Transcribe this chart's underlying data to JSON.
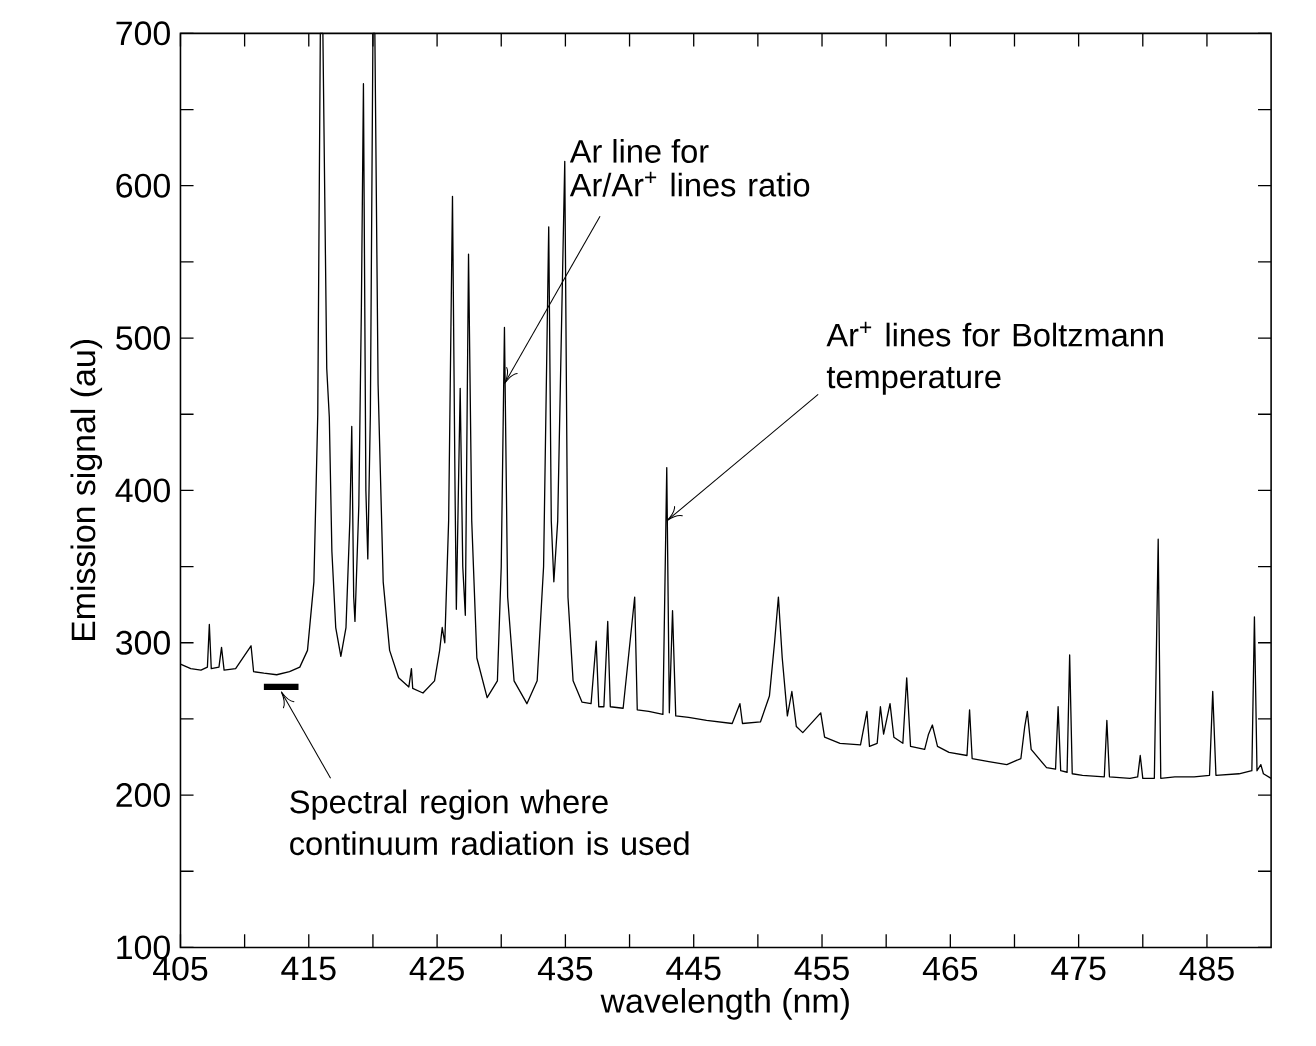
{
  "chart_data": {
    "type": "line",
    "xlabel": "wavelength (nm)",
    "ylabel": "Emission signal (au)",
    "xlim": [
      405,
      490
    ],
    "ylim": [
      100,
      700
    ],
    "xticks": [
      405,
      {
        "value": 410,
        "label": null
      },
      415,
      {
        "value": 420,
        "label": null
      },
      425,
      {
        "value": 430,
        "label": null
      },
      435,
      {
        "value": 440,
        "label": null
      },
      445,
      {
        "value": 450,
        "label": null
      },
      455,
      {
        "value": 460,
        "label": null
      },
      465,
      {
        "value": 470,
        "label": null
      },
      475,
      {
        "value": 480,
        "label": null
      },
      485
    ],
    "yticks": [
      100,
      {
        "value": 150,
        "label": null
      },
      200,
      {
        "value": 250,
        "label": null
      },
      300,
      {
        "value": 350,
        "label": null
      },
      400,
      {
        "value": 450,
        "label": null
      },
      500,
      {
        "value": 550,
        "label": null
      },
      600,
      {
        "value": 650,
        "label": null
      },
      700
    ],
    "grid": false,
    "marker": "none",
    "line_style": "solid",
    "series": [
      {
        "color": "#000000",
        "x": [
          405.0,
          405.8,
          406.6,
          407.1,
          407.25,
          407.4,
          408.0,
          408.2,
          408.4,
          409.3,
          410.5,
          410.7,
          411.5,
          412.5,
          413.5,
          414.3,
          414.9,
          415.4,
          415.7,
          415.9,
          416.1,
          416.4,
          416.6,
          416.8,
          417.1,
          417.5,
          417.9,
          418.2,
          418.35,
          418.5,
          418.6,
          418.9,
          419.1,
          419.26,
          419.45,
          419.6,
          419.8,
          420.0,
          420.15,
          420.4,
          420.8,
          421.3,
          422.0,
          422.8,
          423.0,
          423.1,
          423.9,
          424.8,
          425.2,
          425.4,
          425.6,
          425.9,
          426.2,
          426.4,
          426.5,
          426.8,
          427.0,
          427.2,
          427.45,
          427.7,
          428.1,
          428.9,
          429.7,
          430.0,
          430.25,
          430.5,
          431.0,
          432.0,
          432.8,
          433.3,
          433.7,
          433.9,
          434.1,
          434.4,
          434.95,
          435.2,
          435.6,
          436.3,
          437.0,
          437.4,
          437.6,
          438.0,
          438.3,
          438.5,
          439.5,
          440.4,
          440.6,
          441.5,
          442.6,
          442.9,
          443.1,
          443.35,
          443.6,
          444.6,
          446.0,
          448.0,
          448.6,
          448.8,
          450.2,
          450.9,
          451.3,
          451.6,
          451.9,
          452.3,
          452.65,
          453.0,
          453.5,
          454.9,
          455.2,
          456.4,
          458.0,
          458.5,
          458.7,
          459.3,
          459.55,
          459.8,
          460.3,
          460.6,
          461.3,
          461.6,
          461.9,
          463.0,
          463.3,
          463.6,
          464.0,
          464.9,
          466.3,
          466.5,
          466.7,
          468.0,
          469.4,
          470.5,
          470.8,
          471.0,
          471.3,
          472.5,
          473.2,
          473.4,
          473.6,
          474.1,
          474.3,
          474.5,
          475.3,
          477.0,
          477.2,
          477.4,
          479.0,
          479.6,
          479.8,
          480.0,
          480.9,
          481.2,
          481.4,
          482.5,
          484.0,
          485.2,
          485.45,
          485.7,
          487.5,
          488.5,
          488.7,
          488.9,
          489.2,
          489.4,
          490.0
        ],
        "values": [
          286,
          283,
          282,
          284,
          312,
          283,
          284,
          297,
          282,
          283,
          298,
          281,
          280,
          279,
          281,
          284,
          295,
          340,
          450,
          700,
          700,
          480,
          448,
          360,
          310,
          291,
          310,
          380,
          442,
          330,
          314,
          390,
          520,
          667,
          400,
          355,
          450,
          700,
          700,
          470,
          340,
          295,
          277,
          271,
          283,
          270,
          267,
          275,
          295,
          310,
          300,
          380,
          593,
          400,
          322,
          467,
          350,
          318,
          555,
          380,
          290,
          264,
          275,
          350,
          507,
          330,
          275,
          260,
          275,
          350,
          573,
          380,
          340,
          380,
          616,
          330,
          275,
          261,
          260,
          301,
          258,
          258,
          314,
          258,
          257,
          330,
          256,
          255,
          253,
          415,
          254,
          321,
          252,
          251,
          249,
          247,
          260,
          247,
          248,
          265,
          300,
          330,
          290,
          252,
          268,
          245,
          241,
          254,
          238,
          234,
          233,
          255,
          232,
          234,
          258,
          240,
          260,
          238,
          234,
          277,
          232,
          230,
          240,
          246,
          232,
          228,
          226,
          256,
          224,
          222,
          220,
          224,
          245,
          255,
          230,
          218,
          217,
          258,
          216,
          215,
          292,
          214,
          213,
          212,
          249,
          212,
          211,
          212,
          226,
          211,
          211,
          368,
          211,
          212,
          212,
          213,
          268,
          213,
          214,
          216,
          317,
          216,
          220,
          214,
          211
        ]
      },
      {
        "color": "#000000",
        "x": [
          411.5,
          414.2
        ],
        "values": [
          271,
          271
        ]
      }
    ],
    "annotations": [
      "Ar line for",
      {
        "text": "Ar/Ar$^{+}$ lines ratio",
        "x": 430.25,
        "y": 470
      },
      {
        "text": "Ar$^{+}$ lines for Boltzmann temperature",
        "x": 442.9,
        "y": 380
      },
      {
        "text": "Spectral region where continuum radiation is used",
        "x": 412.85,
        "y": 268
      }
    ]
  }
}
